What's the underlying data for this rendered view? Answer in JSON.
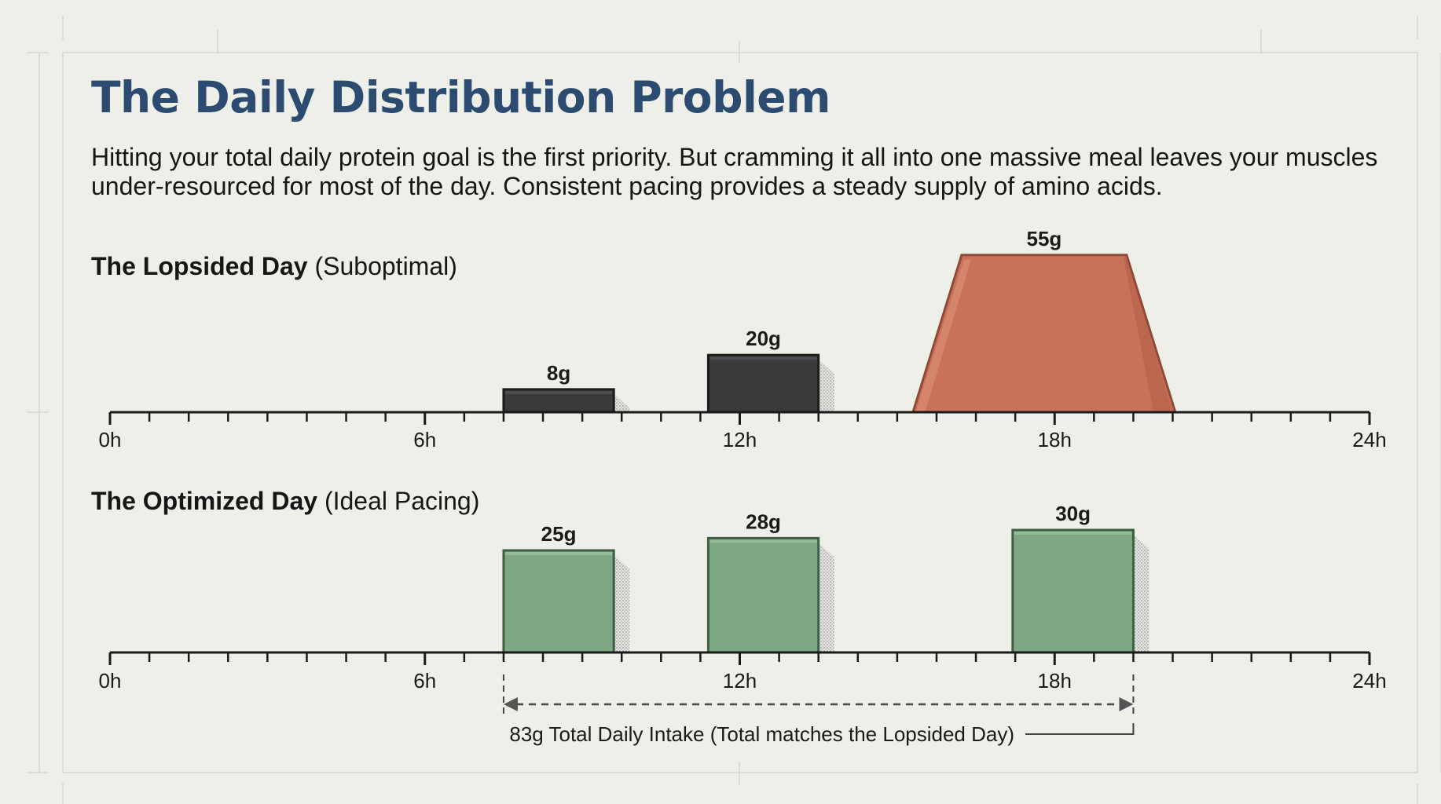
{
  "title": "The Daily Distribution Problem",
  "subtitle": "Hitting your total daily protein goal is the first priority. But cramming it all into one massive meal leaves your muscles under-resourced for most of the day. Consistent pacing provides a steady supply of amino acids.",
  "colors": {
    "title": "#2b4c70",
    "dark_bar": "#3a3a3a",
    "peak_bar": "#c9725a",
    "green_bar": "#7ea884",
    "axis": "#1a1a1a"
  },
  "chart_data": [
    {
      "type": "bar",
      "title_bold": "The Lopsided Day",
      "title_note": "(Suboptimal)",
      "xlim": [
        0,
        24
      ],
      "xticks": [
        "0h",
        "6h",
        "12h",
        "18h",
        "24h"
      ],
      "xtick_values": [
        0,
        6,
        12,
        18,
        24
      ],
      "bars": [
        {
          "label": "8g",
          "value": 8,
          "start": 7.5,
          "end": 9.6,
          "style": "dark"
        },
        {
          "label": "20g",
          "value": 20,
          "start": 11.4,
          "end": 13.5,
          "style": "dark"
        },
        {
          "label": "55g",
          "value": 55,
          "start": 15.3,
          "end": 20.3,
          "style": "peak"
        }
      ]
    },
    {
      "type": "bar",
      "title_bold": "The Optimized Day",
      "title_note": "(Ideal Pacing)",
      "xlim": [
        0,
        24
      ],
      "xticks": [
        "0h",
        "6h",
        "12h",
        "18h",
        "24h"
      ],
      "xtick_values": [
        0,
        6,
        12,
        18,
        24
      ],
      "bars": [
        {
          "label": "25g",
          "value": 25,
          "start": 7.5,
          "end": 9.6,
          "style": "green"
        },
        {
          "label": "28g",
          "value": 28,
          "start": 11.4,
          "end": 13.5,
          "style": "green"
        },
        {
          "label": "30g",
          "value": 30,
          "start": 17.2,
          "end": 19.5,
          "style": "green"
        }
      ],
      "annotation": {
        "text": "83g Total Daily Intake (Total matches the Lopsided Day)",
        "from": 7.5,
        "to": 19.5
      }
    }
  ]
}
